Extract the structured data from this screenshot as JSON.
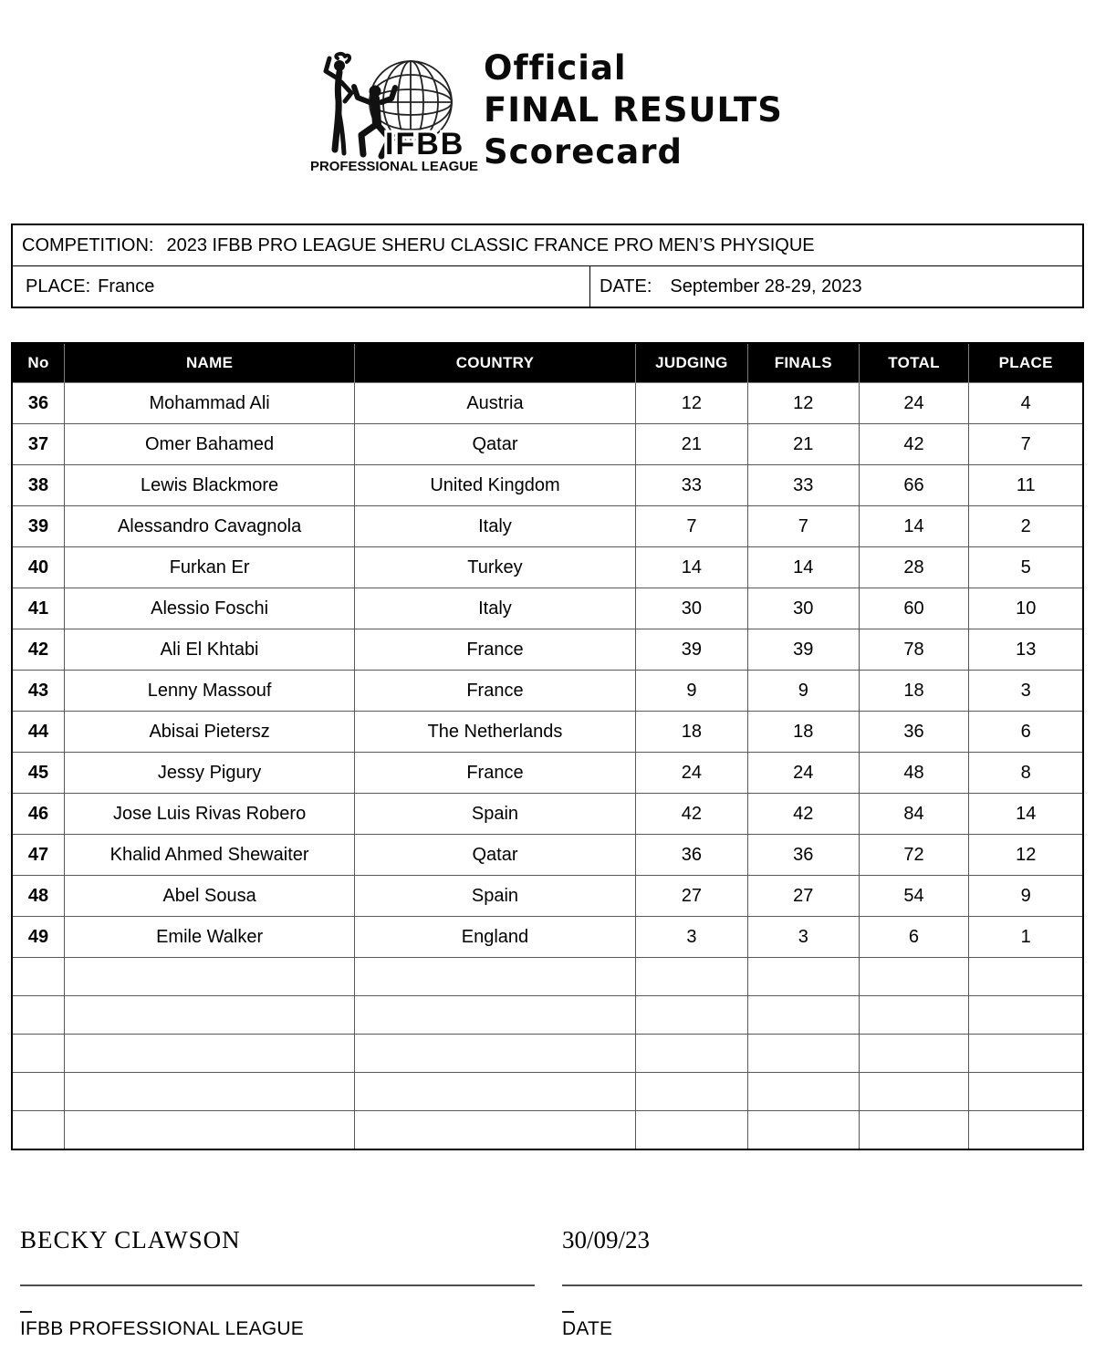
{
  "logo": {
    "acronym": "IFBB",
    "league": "PROFESSIONAL LEAGUE"
  },
  "title": {
    "line1": "Official",
    "line2": "FINAL RESULTS",
    "line3": "Scorecard"
  },
  "info": {
    "competition_label": "COMPETITION:",
    "competition_value": "2023 IFBB PRO LEAGUE SHERU CLASSIC FRANCE PRO MEN’S PHYSIQUE",
    "place_label": "PLACE:",
    "place_value": "France",
    "date_label": "DATE:",
    "date_value": "September 28-29, 2023"
  },
  "table": {
    "columns": [
      "No",
      "NAME",
      "COUNTRY",
      "JUDGING",
      "FINALS",
      "TOTAL",
      "PLACE"
    ],
    "rows": [
      {
        "no": "36",
        "name": "Mohammad Ali",
        "country": "Austria",
        "judging": "12",
        "finals": "12",
        "total": "24",
        "place": "4"
      },
      {
        "no": "37",
        "name": "Omer Bahamed",
        "country": "Qatar",
        "judging": "21",
        "finals": "21",
        "total": "42",
        "place": "7"
      },
      {
        "no": "38",
        "name": "Lewis Blackmore",
        "country": "United Kingdom",
        "judging": "33",
        "finals": "33",
        "total": "66",
        "place": "11"
      },
      {
        "no": "39",
        "name": "Alessandro Cavagnola",
        "country": "Italy",
        "judging": "7",
        "finals": "7",
        "total": "14",
        "place": "2"
      },
      {
        "no": "40",
        "name": "Furkan Er",
        "country": "Turkey",
        "judging": "14",
        "finals": "14",
        "total": "28",
        "place": "5"
      },
      {
        "no": "41",
        "name": "Alessio Foschi",
        "country": "Italy",
        "judging": "30",
        "finals": "30",
        "total": "60",
        "place": "10"
      },
      {
        "no": "42",
        "name": "Ali El Khtabi",
        "country": "France",
        "judging": "39",
        "finals": "39",
        "total": "78",
        "place": "13"
      },
      {
        "no": "43",
        "name": "Lenny Massouf",
        "country": "France",
        "judging": "9",
        "finals": "9",
        "total": "18",
        "place": "3"
      },
      {
        "no": "44",
        "name": "Abisai Pietersz",
        "country": "The Netherlands",
        "judging": "18",
        "finals": "18",
        "total": "36",
        "place": "6"
      },
      {
        "no": "45",
        "name": "Jessy Pigury",
        "country": "France",
        "judging": "24",
        "finals": "24",
        "total": "48",
        "place": "8"
      },
      {
        "no": "46",
        "name": "Jose Luis Rivas Robero",
        "country": "Spain",
        "judging": "42",
        "finals": "42",
        "total": "84",
        "place": "14"
      },
      {
        "no": "47",
        "name": "Khalid Ahmed Shewaiter",
        "country": "Qatar",
        "judging": "36",
        "finals": "36",
        "total": "72",
        "place": "12"
      },
      {
        "no": "48",
        "name": "Abel Sousa",
        "country": "Spain",
        "judging": "27",
        "finals": "27",
        "total": "54",
        "place": "9"
      },
      {
        "no": "49",
        "name": "Emile Walker",
        "country": "England",
        "judging": "3",
        "finals": "3",
        "total": "6",
        "place": "1"
      }
    ],
    "empty_row_count": 5
  },
  "footer": {
    "signed_by": "BECKY CLAWSON",
    "signature_date": "30/09/23",
    "org_label": "IFBB PROFESSIONAL LEAGUE",
    "date_label": "DATE"
  }
}
